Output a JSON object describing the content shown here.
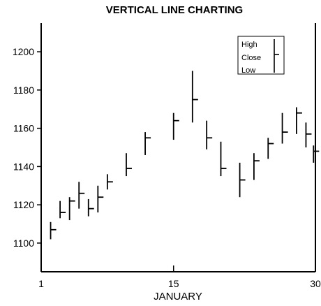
{
  "chart_data": {
    "type": "hlc",
    "title": "VERTICAL LINE CHARTING",
    "xlabel": "JANUARY",
    "ylabel": "",
    "xlim": [
      1,
      30
    ],
    "ylim": [
      1085,
      1215
    ],
    "x_ticks": [
      1,
      15,
      30
    ],
    "y_ticks": [
      1100,
      1120,
      1140,
      1160,
      1180,
      1200
    ],
    "grid": false,
    "legend": {
      "position": "top-right",
      "entries": [
        "High",
        "Close",
        "Low"
      ]
    },
    "series": [
      {
        "bars": [
          {
            "x": 2,
            "high": 1111,
            "low": 1102,
            "close": 1107
          },
          {
            "x": 3,
            "high": 1122,
            "low": 1113,
            "close": 1116
          },
          {
            "x": 4,
            "high": 1124,
            "low": 1112,
            "close": 1122
          },
          {
            "x": 5,
            "high": 1132,
            "low": 1118,
            "close": 1126
          },
          {
            "x": 6,
            "high": 1123,
            "low": 1114,
            "close": 1118
          },
          {
            "x": 7,
            "high": 1130,
            "low": 1116,
            "close": 1124
          },
          {
            "x": 8,
            "high": 1136,
            "low": 1128,
            "close": 1132
          },
          {
            "x": 10,
            "high": 1147,
            "low": 1135,
            "close": 1139
          },
          {
            "x": 12,
            "high": 1158,
            "low": 1146,
            "close": 1155
          },
          {
            "x": 15,
            "high": 1168,
            "low": 1154,
            "close": 1164
          },
          {
            "x": 17,
            "high": 1190,
            "low": 1163,
            "close": 1175
          },
          {
            "x": 18.5,
            "high": 1164,
            "low": 1149,
            "close": 1155
          },
          {
            "x": 20,
            "high": 1153,
            "low": 1135,
            "close": 1139
          },
          {
            "x": 22,
            "high": 1142,
            "low": 1124,
            "close": 1133
          },
          {
            "x": 23.5,
            "high": 1147,
            "low": 1133,
            "close": 1143
          },
          {
            "x": 25,
            "high": 1155,
            "low": 1144,
            "close": 1152
          },
          {
            "x": 26.5,
            "high": 1168,
            "low": 1152,
            "close": 1158
          },
          {
            "x": 28,
            "high": 1171,
            "low": 1157,
            "close": 1168
          },
          {
            "x": 29,
            "high": 1163,
            "low": 1150,
            "close": 1157
          },
          {
            "x": 29.8,
            "high": 1151,
            "low": 1142,
            "close": 1148
          }
        ]
      }
    ]
  }
}
